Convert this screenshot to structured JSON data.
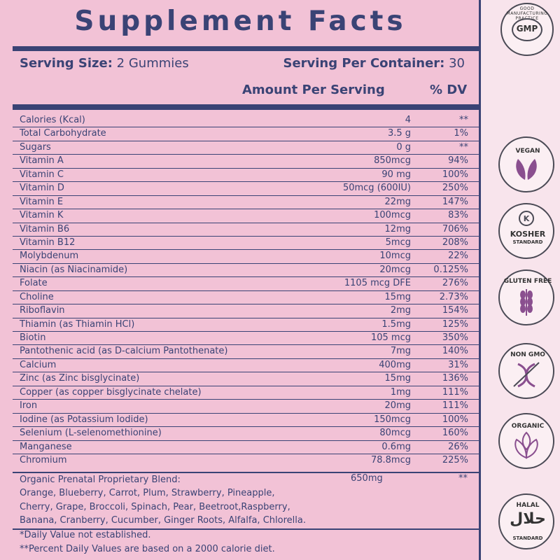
{
  "panel": {
    "title": "Supplement Facts",
    "serving_size_label": "Serving Size:",
    "serving_size_value": "2 Gummies",
    "serving_per_label": "Serving Per Container:",
    "serving_per_value": "30",
    "amount_header": "Amount Per Serving",
    "dv_header": "% DV"
  },
  "rows": [
    {
      "name": "Calories (Kcal)",
      "amount": "4",
      "dv": "**"
    },
    {
      "name": "Total Carbohydrate",
      "amount": "3.5 g",
      "dv": "1%"
    },
    {
      "name": "Sugars",
      "amount": "0 g",
      "dv": "**"
    },
    {
      "name": "Vitamin A",
      "amount": "850mcg",
      "dv": "94%"
    },
    {
      "name": "Vitamin C",
      "amount": "90 mg",
      "dv": "100%"
    },
    {
      "name": "Vitamin D",
      "amount": "50mcg (600IU)",
      "dv": "250%"
    },
    {
      "name": "Vitamin E",
      "amount": "22mg",
      "dv": "147%"
    },
    {
      "name": "Vitamin K",
      "amount": "100mcg",
      "dv": "83%"
    },
    {
      "name": "Vitamin B6",
      "amount": "12mg",
      "dv": "706%"
    },
    {
      "name": "Vitamin B12",
      "amount": "5mcg",
      "dv": "208%"
    },
    {
      "name": "Molybdenum",
      "amount": "10mcg",
      "dv": "22%"
    },
    {
      "name": "Niacin (as Niacinamide)",
      "amount": "20mcg",
      "dv": "0.125%"
    },
    {
      "name": "Folate",
      "amount": "1105 mcg DFE",
      "dv": "276%"
    },
    {
      "name": "Choline",
      "amount": "15mg",
      "dv": "2.73%"
    },
    {
      "name": "Riboflavin",
      "amount": "2mg",
      "dv": "154%"
    },
    {
      "name": "Thiamin (as Thiamin HCl)",
      "amount": "1.5mg",
      "dv": "125%"
    },
    {
      "name": "Biotin",
      "amount": "105 mcg",
      "dv": "350%"
    },
    {
      "name": "Pantothenic acid (as D-calcium Pantothenate)",
      "amount": "7mg",
      "dv": "140%"
    },
    {
      "name": "Calcium",
      "amount": "400mg",
      "dv": "31%"
    },
    {
      "name": "Zinc (as Zinc bisglycinate)",
      "amount": "15mg",
      "dv": "136%"
    },
    {
      "name": "Copper (as copper bisglycinate chelate)",
      "amount": "1mg",
      "dv": "111%"
    },
    {
      "name": "Iron",
      "amount": "20mg",
      "dv": "111%"
    },
    {
      "name": "Iodine (as Potassium Iodide)",
      "amount": "150mcg",
      "dv": "100%"
    },
    {
      "name": "Selenium (L-selenomethionine)",
      "amount": "80mcg",
      "dv": "160%"
    },
    {
      "name": "Manganese",
      "amount": "0.6mg",
      "dv": "26%"
    },
    {
      "name": "Chromium",
      "amount": "78.8mcg",
      "dv": "225%"
    }
  ],
  "blend": {
    "title": "Organic Prenatal Proprietary Blend:",
    "amount": "650mg",
    "dv": "**",
    "line1": "Orange, Blueberry, Carrot, Plum, Strawberry, Pineapple,",
    "line2": "Cherry, Grape, Broccoli, Spinach, Pear, Beetroot,Raspberry,",
    "line3": "Banana, Cranberry, Cucumber, Ginger Roots, Alfalfa, Chlorella."
  },
  "footnotes": {
    "fn1": "*Daily Value not established.",
    "fn2": "**Percent Daily Values are based on a 2000 calorie diet."
  },
  "badges": {
    "gmp_ring": "GOOD MANUFACTURING PRACTICE",
    "gmp": "GMP",
    "vegan": "VEGAN",
    "kosher": "KOSHER",
    "kosher_sub": "STANDARD",
    "gluten": "GLUTEN FREE",
    "nongmo": "NON GMO",
    "organic": "ORGANIC",
    "halal": "HALAL",
    "halal_arabic": "حلال",
    "halal_sub": "STANDARD"
  },
  "colors": {
    "navy": "#3a4375",
    "pink_panel": "#f2c2d6",
    "background": "#f8e4ec",
    "leaf_purple": "#8a4f8f"
  }
}
